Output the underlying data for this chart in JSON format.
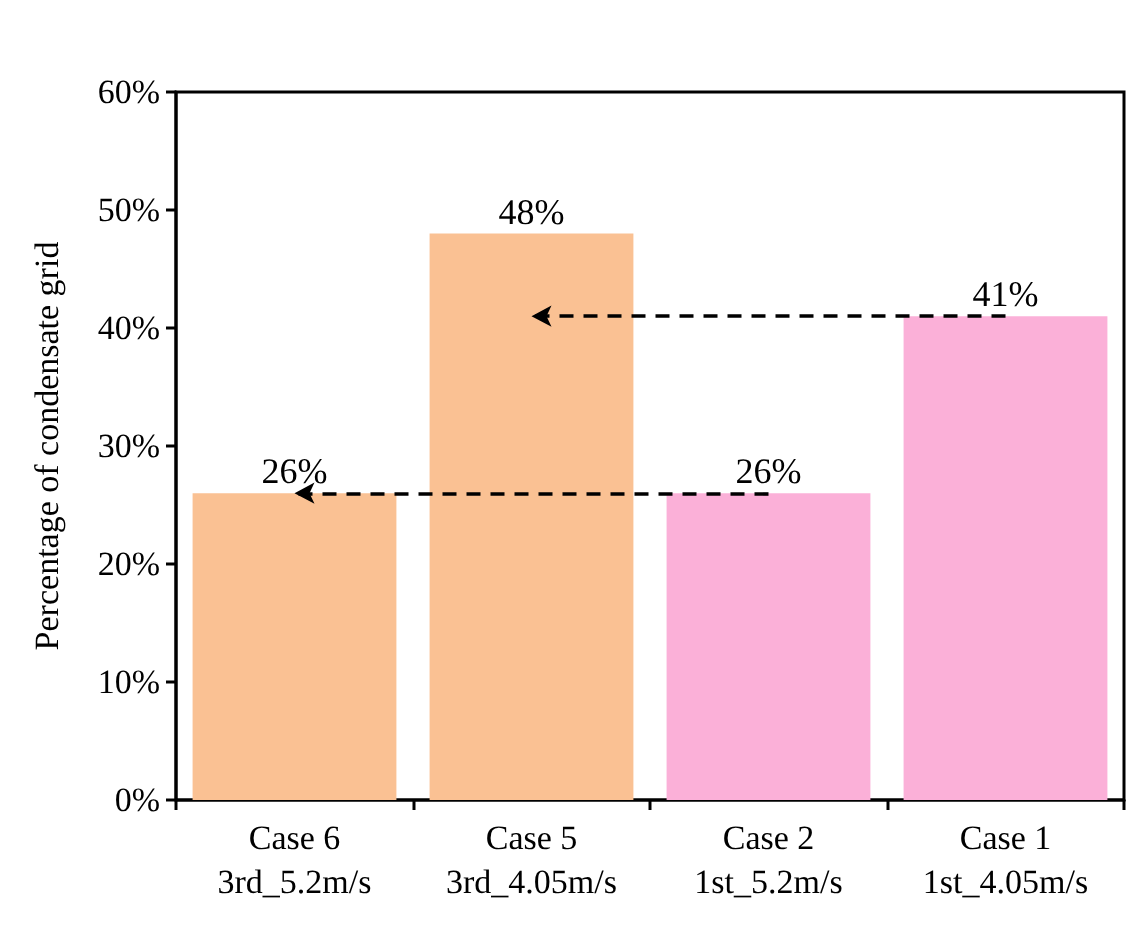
{
  "chart_data": {
    "type": "bar",
    "ylabel": "Percentage of condensate grid",
    "categories": [
      "Case 6\n3rd_5.2m/s",
      "Case 5\n3rd_4.05m/s",
      "Case 2\n1st_5.2m/s",
      "Case 1\n1st_4.05m/s"
    ],
    "values": [
      26,
      48,
      26,
      41
    ],
    "colors": [
      "#fac193",
      "#fac193",
      "#fbb0d8",
      "#fbb0d8"
    ],
    "value_labels": [
      "26%",
      "48%",
      "26%",
      "41%"
    ],
    "ylim": [
      0,
      60
    ],
    "yticks": [
      {
        "value": 0,
        "label": "0%"
      },
      {
        "value": 10,
        "label": "10%"
      },
      {
        "value": 20,
        "label": "20%"
      },
      {
        "value": 30,
        "label": "30%"
      },
      {
        "value": 40,
        "label": "40%"
      },
      {
        "value": 50,
        "label": "50%"
      },
      {
        "value": 60,
        "label": "60%"
      }
    ],
    "grid": false
  }
}
